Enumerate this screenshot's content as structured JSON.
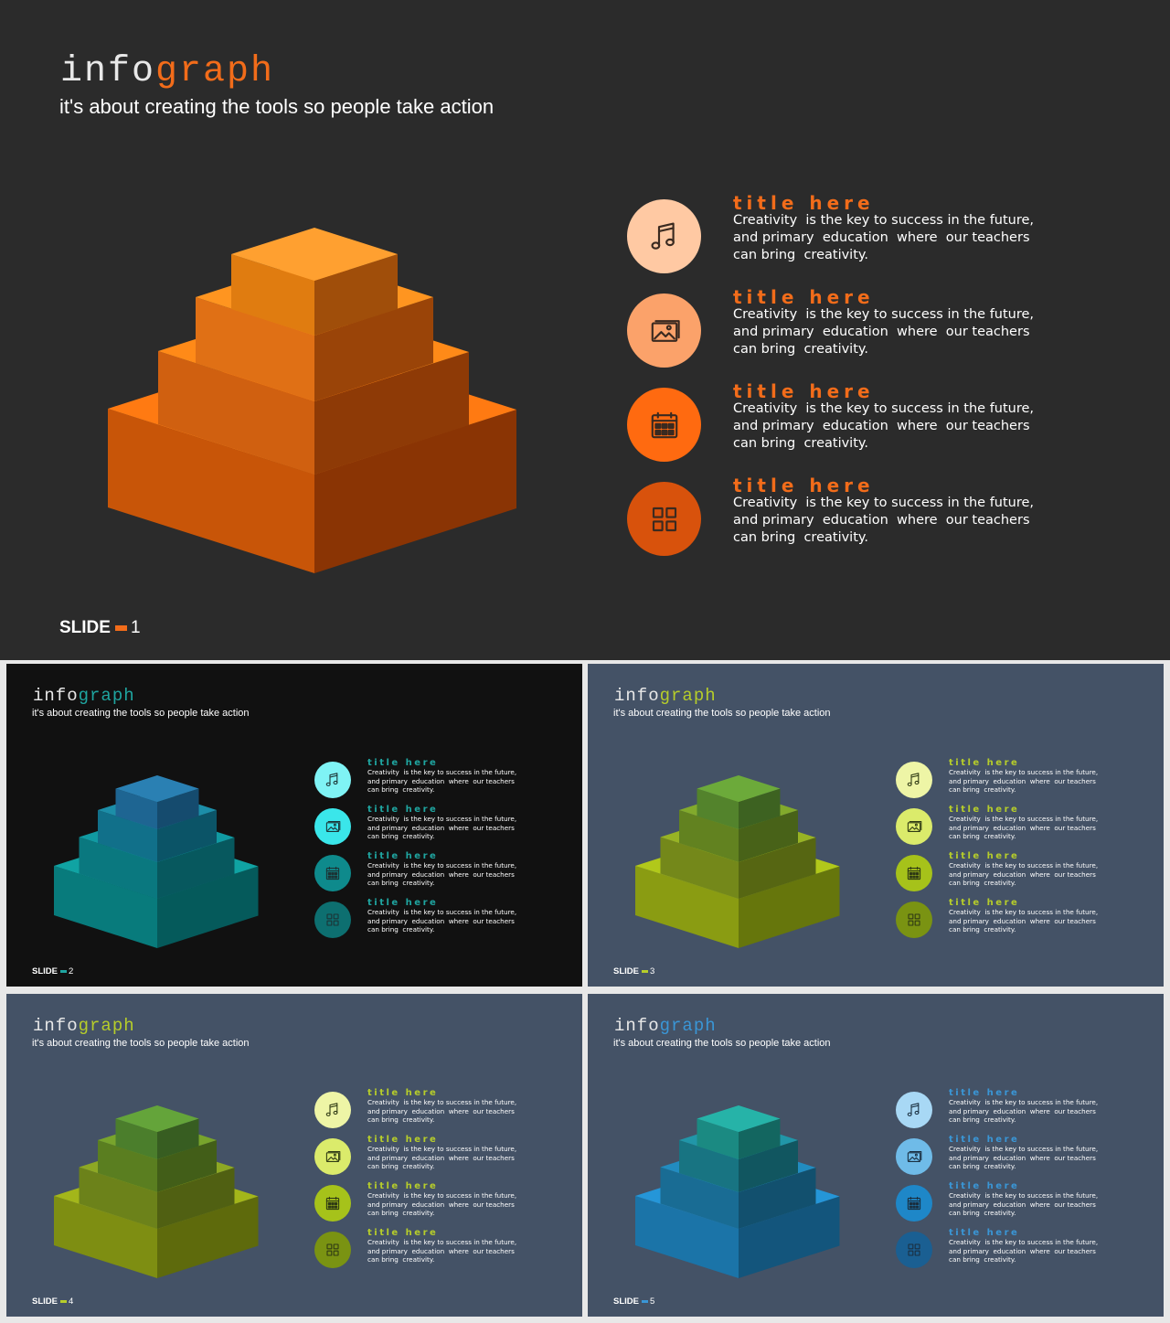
{
  "brand": {
    "part1": "info",
    "part2": "graph"
  },
  "subtitle": "it's about creating the tools so people take action",
  "slide_word": "SLIDE",
  "items": [
    {
      "icon": "music-note-icon",
      "title": "title here",
      "lines": [
        "Creativity  is the key to success in the future,",
        "and primary  education  where  our teachers",
        "can bring  creativity."
      ]
    },
    {
      "icon": "image-icon",
      "title": "title here",
      "lines": [
        "Creativity  is the key to success in the future,",
        "and primary  education  where  our teachers",
        "can bring  creativity."
      ]
    },
    {
      "icon": "calendar-icon",
      "title": "title here",
      "lines": [
        "Creativity  is the key to success in the future,",
        "and primary  education  where  our teachers",
        "can bring  creativity."
      ]
    },
    {
      "icon": "grid-icon",
      "title": "title here",
      "lines": [
        "Creativity  is the key to success in the future,",
        "and primary  education  where  our teachers",
        "can bring  creativity."
      ]
    }
  ],
  "slides": [
    {
      "number": "1",
      "background": "#2b2b2b",
      "brand_color": "#e8e8e8",
      "accent": "#f26c1a",
      "tiers": [
        {
          "top": "#ff7a12",
          "left": "#c85508",
          "right": "#8a3404"
        },
        {
          "top": "#ff8a18",
          "left": "#d06010",
          "right": "#8e3a06"
        },
        {
          "top": "#ff9520",
          "left": "#e07015",
          "right": "#9a4408"
        },
        {
          "top": "#ffa030",
          "left": "#e07c10",
          "right": "#a04e0a"
        }
      ],
      "circles": [
        "#ffc9a3",
        "#fba26a",
        "#ff6a10",
        "#d8520c"
      ],
      "icon_stroke": "#3a2a20"
    },
    {
      "number": "2",
      "background": "#111111",
      "brand_color": "#e8e8e8",
      "accent": "#1fa5a0",
      "tiers": [
        {
          "top": "#10a3a3",
          "left": "#087b7c",
          "right": "#055a5b"
        },
        {
          "top": "#119aa2",
          "left": "#0a787f",
          "right": "#07585e"
        },
        {
          "top": "#1c8ea8",
          "left": "#11708a",
          "right": "#0b5467"
        },
        {
          "top": "#2a80b3",
          "left": "#1e6592",
          "right": "#154b6e"
        }
      ],
      "circles": [
        "#7ff3f5",
        "#3ae6ea",
        "#0e8a8c",
        "#0d6f70"
      ],
      "icon_stroke": "#1c3335"
    },
    {
      "number": "3",
      "background": "#445266",
      "brand_color": "#e8e8e8",
      "accent": "#b6cd2a",
      "tiers": [
        {
          "top": "#b1c81a",
          "left": "#8a9c12",
          "right": "#66760c"
        },
        {
          "top": "#98b324",
          "left": "#74881a",
          "right": "#566612"
        },
        {
          "top": "#82aa2c",
          "left": "#628220",
          "right": "#486218"
        },
        {
          "top": "#6caa3a",
          "left": "#53832c",
          "right": "#3d6221"
        }
      ],
      "circles": [
        "#eef5a6",
        "#dbeb6b",
        "#a6c21a",
        "#7a9312"
      ],
      "icon_stroke": "#2f3a14"
    },
    {
      "number": "4",
      "background": "#445266",
      "brand_color": "#e8e8e8",
      "accent": "#b6cd2a",
      "tiers": [
        {
          "top": "#a3b61a",
          "left": "#7e8e12",
          "right": "#5e6a0c"
        },
        {
          "top": "#8da824",
          "left": "#6c821a",
          "right": "#506012"
        },
        {
          "top": "#78a42c",
          "left": "#5a7e20",
          "right": "#425e18"
        },
        {
          "top": "#64a43a",
          "left": "#4b7e2c",
          "right": "#375d21"
        }
      ],
      "circles": [
        "#eef5a6",
        "#dbeb6b",
        "#a6c21a",
        "#7a9312"
      ],
      "icon_stroke": "#2f3a14"
    },
    {
      "number": "5",
      "background": "#445266",
      "brand_color": "#e8e8e8",
      "accent": "#3a96d6",
      "tiers": [
        {
          "top": "#2596d8",
          "left": "#1b74a8",
          "right": "#13557c"
        },
        {
          "top": "#228cc0",
          "left": "#196c94",
          "right": "#12506e"
        },
        {
          "top": "#2196a8",
          "left": "#187482",
          "right": "#115660"
        },
        {
          "top": "#26b3a8",
          "left": "#1b8a82",
          "right": "#136660"
        }
      ],
      "circles": [
        "#a8d8f5",
        "#6fbbe8",
        "#1e87c8",
        "#1a5f92"
      ],
      "icon_stroke": "#1a2f40"
    }
  ]
}
